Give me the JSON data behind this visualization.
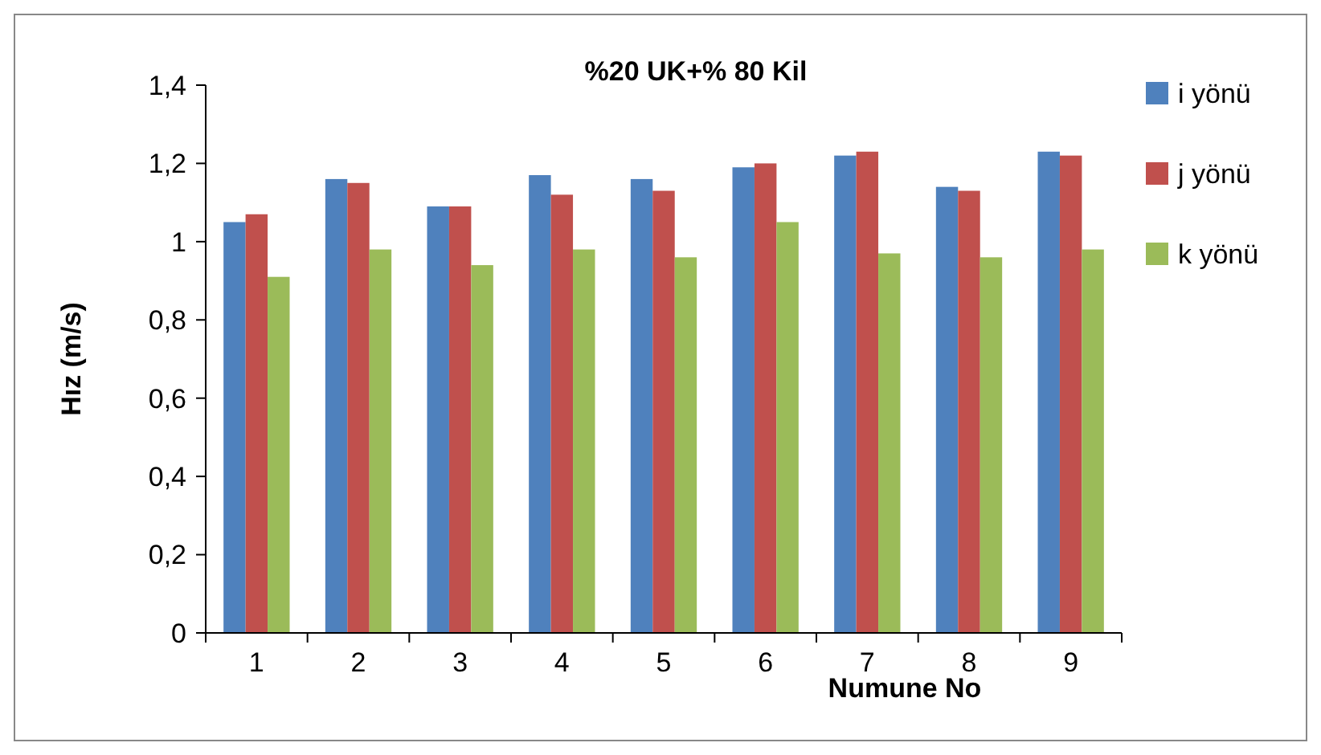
{
  "chart_data": {
    "type": "bar",
    "title": "%20 UK+% 80 Kil",
    "xlabel": "Numune No",
    "ylabel": "Hız (m/s)",
    "categories": [
      "1",
      "2",
      "3",
      "4",
      "5",
      "6",
      "7",
      "8",
      "9"
    ],
    "series": [
      {
        "name": "i yönü",
        "color": "#4f81bd",
        "values": [
          1.05,
          1.16,
          1.09,
          1.17,
          1.16,
          1.19,
          1.22,
          1.14,
          1.23
        ]
      },
      {
        "name": "j yönü",
        "color": "#c0504d",
        "values": [
          1.07,
          1.15,
          1.09,
          1.12,
          1.13,
          1.2,
          1.23,
          1.13,
          1.22
        ]
      },
      {
        "name": "k yönü",
        "color": "#9bbb59",
        "values": [
          0.91,
          0.98,
          0.94,
          0.98,
          0.96,
          1.05,
          0.97,
          0.96,
          0.98
        ]
      }
    ],
    "ylim": [
      0,
      1.4
    ],
    "yticks": [
      0,
      {
        "value": 0.2,
        "label": "0,2"
      },
      {
        "value": 0.4,
        "label": "0,4"
      },
      {
        "value": 0.6,
        "label": "0,6"
      },
      {
        "value": 0.8,
        "label": "0,8"
      },
      1,
      {
        "value": 1.2,
        "label": "1,2"
      },
      {
        "value": 1.4,
        "label": "1,4"
      }
    ],
    "grid": false,
    "legend": "right"
  }
}
